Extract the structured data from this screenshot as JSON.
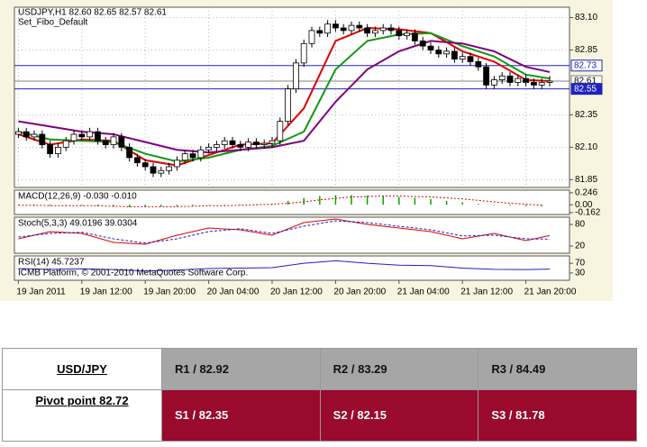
{
  "chart_data": [
    {
      "type": "candlestick",
      "title": "USDJPY,H1  82.60 82.65 82.57 82.61",
      "subtitle": "Set_Fibo_Default",
      "open": [
        82.2,
        82.22,
        82.18,
        82.2,
        82.12,
        82.05,
        82.1,
        82.15,
        82.2,
        82.18,
        82.22,
        82.15,
        82.12,
        82.18,
        82.1,
        82.02,
        81.98,
        81.95,
        81.9,
        81.92,
        81.95,
        82.0,
        82.05,
        82.02,
        82.08,
        82.1,
        82.12,
        82.15,
        82.12,
        82.1,
        82.14,
        82.12,
        82.13,
        82.15,
        82.3,
        82.55,
        82.75,
        82.9,
        83.0,
        82.98,
        83.05,
        83.02,
        83.0,
        83.04,
        83.02,
        82.98,
        83.0,
        83.02,
        83.0,
        82.96,
        82.98,
        82.92,
        82.88,
        82.85,
        82.82,
        82.84,
        82.78,
        82.8,
        82.76,
        82.72,
        82.58,
        82.62,
        82.65,
        82.6,
        82.63,
        82.6,
        82.58,
        82.6
      ],
      "high": [
        82.25,
        82.25,
        82.23,
        82.23,
        82.15,
        82.13,
        82.18,
        82.23,
        82.23,
        82.25,
        82.25,
        82.18,
        82.21,
        82.21,
        82.13,
        82.05,
        82.01,
        81.98,
        81.95,
        81.98,
        82.03,
        82.08,
        82.08,
        82.11,
        82.13,
        82.15,
        82.18,
        82.18,
        82.15,
        82.17,
        82.17,
        82.16,
        82.18,
        82.33,
        82.58,
        82.78,
        82.93,
        83.03,
        83.03,
        83.08,
        83.08,
        83.05,
        83.07,
        83.07,
        83.05,
        83.03,
        83.05,
        83.05,
        83.03,
        83.01,
        83.01,
        82.95,
        82.91,
        82.88,
        82.87,
        82.87,
        82.83,
        82.83,
        82.79,
        82.75,
        82.65,
        82.68,
        82.68,
        82.66,
        82.66,
        82.63,
        82.63,
        82.65
      ],
      "low": [
        82.17,
        82.15,
        82.15,
        82.09,
        82.02,
        82.02,
        82.07,
        82.12,
        82.15,
        82.15,
        82.12,
        82.09,
        82.09,
        82.07,
        81.99,
        81.95,
        81.92,
        81.87,
        81.87,
        81.89,
        81.92,
        81.97,
        81.99,
        81.99,
        82.05,
        82.07,
        82.09,
        82.09,
        82.07,
        82.07,
        82.09,
        82.09,
        82.1,
        82.12,
        82.27,
        82.52,
        82.72,
        82.87,
        82.95,
        82.95,
        82.99,
        82.97,
        82.97,
        82.99,
        82.95,
        82.95,
        82.97,
        82.97,
        82.93,
        82.93,
        82.89,
        82.85,
        82.82,
        82.79,
        82.79,
        82.75,
        82.75,
        82.73,
        82.69,
        82.55,
        82.55,
        82.59,
        82.57,
        82.57,
        82.57,
        82.55,
        82.55,
        82.57
      ],
      "close": [
        82.22,
        82.18,
        82.2,
        82.12,
        82.05,
        82.1,
        82.15,
        82.2,
        82.18,
        82.22,
        82.15,
        82.12,
        82.18,
        82.1,
        82.02,
        81.98,
        81.95,
        81.9,
        81.92,
        81.95,
        82.0,
        82.05,
        82.02,
        82.08,
        82.1,
        82.12,
        82.15,
        82.12,
        82.1,
        82.14,
        82.12,
        82.13,
        82.15,
        82.3,
        82.55,
        82.75,
        82.9,
        83.0,
        82.98,
        83.05,
        83.02,
        83.0,
        83.04,
        83.02,
        82.98,
        83.0,
        83.02,
        83.0,
        82.96,
        82.98,
        82.92,
        82.88,
        82.85,
        82.82,
        82.84,
        82.78,
        82.8,
        82.76,
        82.72,
        82.58,
        82.62,
        82.65,
        82.6,
        82.63,
        82.6,
        82.58,
        82.6,
        82.61
      ],
      "overlays": [
        {
          "color": "#e00000",
          "x": [
            0,
            4,
            8,
            12,
            16,
            20,
            24,
            28,
            32,
            36,
            40,
            44,
            48,
            52,
            56,
            60,
            64,
            67
          ],
          "values": [
            82.2,
            82.12,
            82.16,
            82.15,
            82.0,
            81.96,
            82.04,
            82.12,
            82.13,
            82.4,
            82.92,
            83.02,
            83.01,
            82.98,
            82.84,
            82.76,
            82.62,
            82.61
          ]
        },
        {
          "color": "#119911",
          "x": [
            0,
            4,
            8,
            12,
            16,
            20,
            24,
            28,
            32,
            36,
            40,
            44,
            48,
            52,
            56,
            60,
            64,
            67
          ],
          "values": [
            82.22,
            82.16,
            82.15,
            82.14,
            82.05,
            81.99,
            82.02,
            82.08,
            82.11,
            82.22,
            82.7,
            82.92,
            82.97,
            82.98,
            82.88,
            82.8,
            82.66,
            82.63
          ]
        },
        {
          "color": "#800080",
          "x": [
            0,
            4,
            8,
            12,
            16,
            20,
            24,
            28,
            32,
            36,
            40,
            44,
            48,
            52,
            56,
            60,
            64,
            67
          ],
          "values": [
            82.3,
            82.26,
            82.22,
            82.2,
            82.14,
            82.08,
            82.06,
            82.08,
            82.1,
            82.15,
            82.45,
            82.7,
            82.84,
            82.92,
            82.9,
            82.84,
            82.72,
            82.68
          ]
        }
      ],
      "levels": [
        {
          "value": 82.73,
          "label": "82.73",
          "color": "#2020c0"
        },
        {
          "value": 82.61,
          "label": "82.61",
          "color": "#808080"
        },
        {
          "value": 82.55,
          "label": "82.55",
          "color": "#2020c0"
        }
      ],
      "xlim": [
        -0.5,
        69.5
      ],
      "ylim": [
        81.79,
        83.18
      ],
      "yticks": [
        {
          "value": 81.85,
          "label": "81.85"
        },
        {
          "value": 82.1,
          "label": "82.10"
        },
        {
          "value": 82.35,
          "label": "82.35"
        },
        {
          "value": 82.85,
          "label": "82.85"
        },
        {
          "value": 83.1,
          "label": "83.10"
        }
      ],
      "xticks": [
        {
          "value": 0,
          "label": "19 Jan 2011"
        },
        {
          "value": 8,
          "label": "19 Jan 12:00"
        },
        {
          "value": 16,
          "label": "19 Jan 20:00"
        },
        {
          "value": 24,
          "label": "20 Jan 04:00"
        },
        {
          "value": 32,
          "label": "20 Jan 12:00"
        },
        {
          "value": 40,
          "label": "20 Jan 20:00"
        },
        {
          "value": 48,
          "label": "21 Jan 04:00"
        },
        {
          "value": 56,
          "label": "21 Jan 12:00"
        },
        {
          "value": 64,
          "label": "21 Jan 20:00"
        }
      ],
      "grid": true
    },
    {
      "type": "macd",
      "title": "MACD(12,26,9) -0.030 -0.010",
      "x": [
        0,
        2,
        4,
        6,
        8,
        10,
        12,
        14,
        16,
        18,
        20,
        22,
        24,
        26,
        28,
        30,
        32,
        34,
        36,
        38,
        40,
        42,
        44,
        46,
        48,
        50,
        52,
        54,
        56,
        58,
        60,
        62,
        64,
        66
      ],
      "histogram": {
        "color": "#00aa00",
        "values": [
          -0.01,
          -0.02,
          -0.02,
          -0.01,
          -0.02,
          -0.03,
          -0.04,
          -0.05,
          -0.05,
          -0.04,
          -0.03,
          -0.02,
          -0.01,
          0.0,
          0.0,
          0.01,
          0.02,
          0.08,
          0.14,
          0.18,
          0.2,
          0.2,
          0.19,
          0.18,
          0.16,
          0.14,
          0.12,
          0.08,
          0.05,
          0.02,
          -0.01,
          -0.02,
          -0.03,
          -0.03
        ]
      },
      "signal": {
        "color": "#e00000",
        "values": [
          -0.01,
          -0.01,
          -0.02,
          -0.02,
          -0.02,
          -0.02,
          -0.03,
          -0.04,
          -0.04,
          -0.04,
          -0.04,
          -0.03,
          -0.02,
          -0.02,
          -0.01,
          0.0,
          0.01,
          0.03,
          0.06,
          0.1,
          0.13,
          0.16,
          0.17,
          0.18,
          0.18,
          0.17,
          0.16,
          0.14,
          0.12,
          0.09,
          0.06,
          0.03,
          0.01,
          -0.01
        ]
      },
      "xlim": [
        -0.5,
        69.5
      ],
      "ylim": [
        -0.2,
        0.3
      ],
      "yticks": [
        0.246,
        {
          "value": 0,
          "label": "0.00"
        },
        -0.162
      ]
    },
    {
      "type": "line",
      "title": "Stoch(5,3,3) 49.0196 39.0304",
      "x": [
        0,
        4,
        8,
        12,
        16,
        20,
        24,
        28,
        32,
        36,
        40,
        44,
        48,
        52,
        56,
        60,
        64,
        67
      ],
      "series": [
        {
          "color": "#e00000",
          "dashed": false,
          "values": [
            40,
            60,
            55,
            30,
            25,
            50,
            70,
            65,
            50,
            85,
            95,
            80,
            70,
            60,
            40,
            55,
            35,
            49.0196
          ]
        },
        {
          "color": "#2020c0",
          "dashed": true,
          "values": [
            45,
            55,
            58,
            40,
            28,
            40,
            60,
            68,
            55,
            75,
            90,
            85,
            75,
            65,
            48,
            50,
            40,
            39.0304
          ]
        }
      ],
      "xlim": [
        -0.5,
        69.5
      ],
      "ylim": [
        0,
        100
      ],
      "yticks": [
        80,
        20
      ]
    },
    {
      "type": "line",
      "title": "RSI(14) 45.7237",
      "subtitle": "ICMB Platform, © 2001-2010 MetaQuotes Software Corp.",
      "x": [
        0,
        4,
        8,
        12,
        16,
        20,
        24,
        28,
        32,
        36,
        40,
        44,
        48,
        52,
        56,
        60,
        64,
        67
      ],
      "series": [
        {
          "color": "#2020c0",
          "dashed": false,
          "values": [
            48,
            45,
            47,
            44,
            38,
            42,
            48,
            50,
            52,
            70,
            80,
            70,
            62,
            60,
            50,
            45,
            44,
            45.7237
          ]
        }
      ],
      "xlim": [
        -0.5,
        69.5
      ],
      "ylim": [
        0,
        100
      ],
      "yticks": [
        70,
        30
      ]
    }
  ],
  "table": {
    "pair": "USD/JPY",
    "pivot": "Pivot point 82.72",
    "rows": [
      [
        "R1 / 82.92",
        "R2 / 83.29",
        "R3 / 84.49"
      ],
      [
        "S1 / 82.35",
        "S2 / 82.15",
        "S3 / 81.78"
      ]
    ]
  }
}
